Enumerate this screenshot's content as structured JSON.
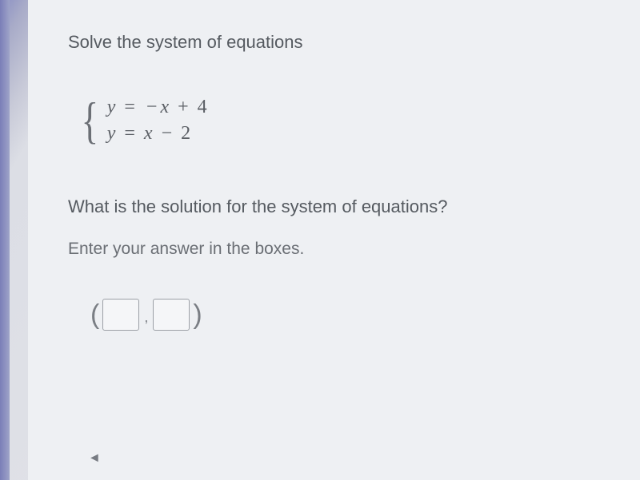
{
  "problem": {
    "instruction": "Solve the system of equations",
    "equations": {
      "eq1": "y = −x + 4",
      "eq2": "y = x − 2"
    },
    "question": "What is the solution for the system of equations?",
    "hint": "Enter your answer in the boxes."
  },
  "answer": {
    "x_value": "",
    "y_value": ""
  },
  "nav": {
    "prev_symbol": "◄"
  },
  "style": {
    "background_color": "#eef0f3",
    "text_color": "#555a60",
    "equation_color": "#5a5e64",
    "hint_color": "#6a6e74",
    "border_accent": "#7a7eb8",
    "box_border": "#9ca0a6",
    "instruction_fontsize": 22,
    "equation_fontsize": 24
  }
}
